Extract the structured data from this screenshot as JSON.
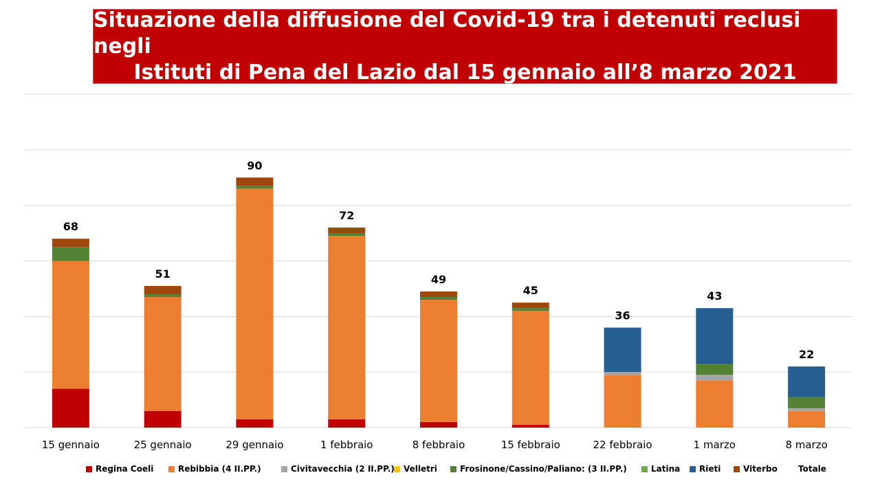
{
  "title": {
    "line1": "Situazione della diffusione del Covid-19 tra i detenuti reclusi negli",
    "line2": "Istituti di Pena del Lazio dal 15 gennaio all’8 marzo 2021"
  },
  "chart_data": {
    "type": "bar",
    "stacked": true,
    "categories": [
      "15 gennaio",
      "25 gennaio",
      "29 gennaio",
      "1 febbraio",
      "8 febbraio",
      "15 febbraio",
      "22 febbraio",
      "1 marzo",
      "8 marzo"
    ],
    "totals": [
      68,
      51,
      90,
      72,
      49,
      45,
      36,
      43,
      22
    ],
    "ylim": [
      0,
      120
    ],
    "grid": true,
    "legend_position": "bottom",
    "series": [
      {
        "name": "Regina Coeli",
        "color": "#c00000",
        "values": [
          14,
          6,
          3,
          3,
          2,
          1,
          0,
          0,
          0
        ]
      },
      {
        "name": "Rebibbia (4 II.PP.)",
        "color": "#ed7d31",
        "values": [
          46,
          41,
          83,
          66,
          44,
          41,
          19,
          17,
          6
        ]
      },
      {
        "name": "Civitavecchia (2 II.PP.)",
        "color": "#a5a5a5",
        "values": [
          0,
          0,
          0,
          0,
          0,
          0,
          1,
          2,
          1
        ]
      },
      {
        "name": "Velletri",
        "color": "#ffc000",
        "values": [
          0,
          0,
          0,
          0,
          0,
          0,
          0,
          0,
          0
        ]
      },
      {
        "name": "Frosinone/Cassino/Paliano: (3 II.PP.)",
        "color": "#548235",
        "values": [
          5,
          1,
          1,
          1,
          1,
          1,
          0,
          4,
          4
        ]
      },
      {
        "name": "Latina",
        "color": "#70ad47",
        "values": [
          0,
          0,
          0,
          0,
          0,
          0,
          0,
          0,
          0
        ]
      },
      {
        "name": "Rieti",
        "color": "#255e91",
        "values": [
          0,
          0,
          0,
          0,
          0,
          0,
          16,
          20,
          11
        ]
      },
      {
        "name": "Viterbo",
        "color": "#9e480e",
        "values": [
          3,
          3,
          3,
          2,
          2,
          2,
          0,
          0,
          0
        ]
      }
    ],
    "extra_legend": "Totale"
  }
}
